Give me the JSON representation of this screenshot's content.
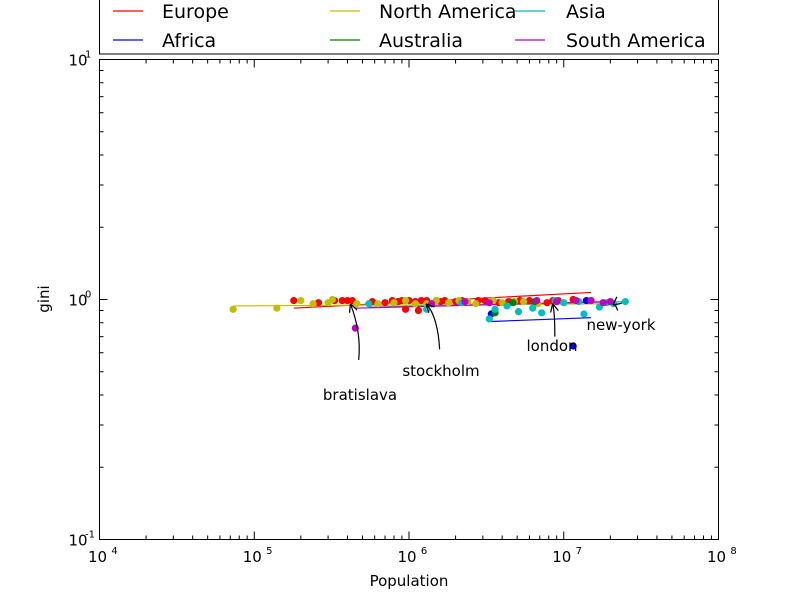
{
  "chart_data": {
    "type": "scatter",
    "xlabel": "Population",
    "ylabel": "gini",
    "x_scale": "log",
    "y_scale": "log",
    "xlim": [
      10000,
      100000000
    ],
    "ylim": [
      0.1,
      10
    ],
    "x_ticks": [
      {
        "value": 10000,
        "base": "10",
        "exp": "4"
      },
      {
        "value": 100000,
        "base": "10",
        "exp": "5"
      },
      {
        "value": 1000000,
        "base": "10",
        "exp": "6"
      },
      {
        "value": 10000000,
        "base": "10",
        "exp": "7"
      },
      {
        "value": 100000000,
        "base": "10",
        "exp": "8"
      }
    ],
    "y_ticks": [
      {
        "value": 0.1,
        "base": "10",
        "exp": "-1"
      },
      {
        "value": 1,
        "base": "10",
        "exp": "0"
      },
      {
        "value": 10,
        "base": "10",
        "exp": "1"
      }
    ],
    "grid": false,
    "legend_position": "top",
    "series": [
      {
        "name": "Europe",
        "color": "#ff0000",
        "points": [
          [
            180000,
            0.99
          ],
          [
            260000,
            0.97
          ],
          [
            330000,
            0.99
          ],
          [
            370000,
            0.99
          ],
          [
            400000,
            0.99
          ],
          [
            430000,
            0.99
          ],
          [
            580000,
            0.98
          ],
          [
            700000,
            0.97
          ],
          [
            780000,
            0.99
          ],
          [
            850000,
            0.98
          ],
          [
            900000,
            0.99
          ],
          [
            1000000,
            0.99
          ],
          [
            1100000,
            0.98
          ],
          [
            1200000,
            0.99
          ],
          [
            1300000,
            0.99
          ],
          [
            1500000,
            0.99
          ],
          [
            1600000,
            0.98
          ],
          [
            1700000,
            0.99
          ],
          [
            2000000,
            0.98
          ],
          [
            2200000,
            0.99
          ],
          [
            2800000,
            0.99
          ],
          [
            3100000,
            0.99
          ],
          [
            3800000,
            0.97
          ],
          [
            4400000,
            0.98
          ],
          [
            5200000,
            0.99
          ],
          [
            6000000,
            0.99
          ],
          [
            7800000,
            0.97
          ],
          [
            8500000,
            0.99
          ],
          [
            9200000,
            0.99
          ],
          [
            11500000,
            1.0
          ],
          [
            15000000,
            0.99
          ],
          [
            950000,
            0.91
          ],
          [
            1150000,
            0.9
          ]
        ],
        "fit": [
          [
            180000,
            0.92
          ],
          [
            15000000,
            1.07
          ]
        ]
      },
      {
        "name": "Africa",
        "color": "#0000ff",
        "points": [
          [
            3400000,
            0.87
          ],
          [
            11500000,
            0.64
          ],
          [
            14000000,
            0.99
          ]
        ],
        "fit": [
          [
            3400000,
            0.81
          ],
          [
            15000000,
            0.84
          ]
        ]
      },
      {
        "name": "North America",
        "color": "#bfbf00",
        "points": [
          [
            73000,
            0.91
          ],
          [
            140000,
            0.92
          ],
          [
            200000,
            0.99
          ],
          [
            240000,
            0.96
          ],
          [
            300000,
            0.97
          ],
          [
            320000,
            1.0
          ],
          [
            460000,
            0.96
          ],
          [
            630000,
            0.96
          ],
          [
            800000,
            0.97
          ],
          [
            950000,
            0.99
          ],
          [
            1100000,
            0.96
          ],
          [
            1300000,
            0.96
          ],
          [
            1500000,
            0.99
          ],
          [
            1800000,
            0.97
          ],
          [
            2100000,
            0.99
          ],
          [
            2400000,
            0.98
          ],
          [
            2700000,
            0.96
          ],
          [
            3500000,
            0.99
          ],
          [
            4000000,
            0.97
          ],
          [
            4800000,
            0.98
          ],
          [
            5500000,
            0.98
          ],
          [
            6800000,
            0.96
          ],
          [
            9000000,
            0.98
          ]
        ],
        "fit": [
          [
            73000,
            0.94
          ],
          [
            20000000,
            0.96
          ]
        ]
      },
      {
        "name": "Australia",
        "color": "#008000",
        "points": [
          [
            3600000,
            0.88
          ],
          [
            4700000,
            0.97
          ],
          [
            6500000,
            0.98
          ]
        ],
        "fit": [
          [
            3600000,
            0.97
          ],
          [
            6500000,
            0.98
          ]
        ]
      },
      {
        "name": "Asia",
        "color": "#00bfbf",
        "points": [
          [
            550000,
            0.96
          ],
          [
            1300000,
            0.91
          ],
          [
            2200000,
            0.97
          ],
          [
            3300000,
            0.83
          ],
          [
            3600000,
            0.91
          ],
          [
            4300000,
            0.94
          ],
          [
            5100000,
            0.89
          ],
          [
            6300000,
            0.92
          ],
          [
            7200000,
            0.88
          ],
          [
            8800000,
            0.99
          ],
          [
            10000000,
            0.97
          ],
          [
            12500000,
            0.98
          ],
          [
            13500000,
            0.87
          ],
          [
            17000000,
            0.93
          ],
          [
            21000000,
            0.96
          ],
          [
            25000000,
            0.98
          ],
          [
            19000000,
            0.97
          ]
        ],
        "fit": [
          [
            550000,
            0.93
          ],
          [
            25000000,
            0.98
          ]
        ]
      },
      {
        "name": "South America",
        "color": "#bf00bf",
        "points": [
          [
            450000,
            0.76
          ],
          [
            1400000,
            0.96
          ],
          [
            2300000,
            0.98
          ],
          [
            3300000,
            0.97
          ],
          [
            6700000,
            0.99
          ],
          [
            9000000,
            0.98
          ],
          [
            12000000,
            0.99
          ],
          [
            15000000,
            0.99
          ],
          [
            18000000,
            0.97
          ],
          [
            20000000,
            0.98
          ]
        ],
        "fit": [
          [
            450000,
            0.92
          ],
          [
            20000000,
            0.98
          ]
        ]
      }
    ],
    "legend_order": [
      "Europe",
      "Africa",
      "North America",
      "Australia",
      "Asia",
      "South America"
    ],
    "annotations": [
      {
        "text": "bratislava",
        "x": 420000,
        "y": 0.99
      },
      {
        "text": "stockholm",
        "x": 1300000,
        "y": 0.99
      },
      {
        "text": "london",
        "x": 8500000,
        "y": 0.99
      },
      {
        "text": "new-york",
        "x": 21000000,
        "y": 0.99
      }
    ]
  }
}
